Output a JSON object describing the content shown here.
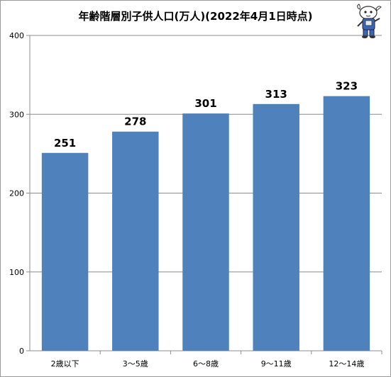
{
  "chart_data": {
    "type": "bar",
    "title": "年齢階層別子供人口(万人)(2022年4月1日時点)",
    "categories": [
      "2歳以下",
      "3〜5歳",
      "6〜8歳",
      "9〜11歳",
      "12〜14歳"
    ],
    "values": [
      251,
      278,
      301,
      313,
      323
    ],
    "data_labels": [
      "251",
      "278",
      "301",
      "313",
      "323"
    ],
    "ylim": [
      0,
      400
    ],
    "yticks": [
      0,
      100,
      200,
      300,
      400
    ],
    "ytick_labels": [
      "0",
      "100",
      "200",
      "300",
      "400"
    ],
    "grid": true,
    "legend": "none",
    "bar_color": "#4f81bd"
  }
}
